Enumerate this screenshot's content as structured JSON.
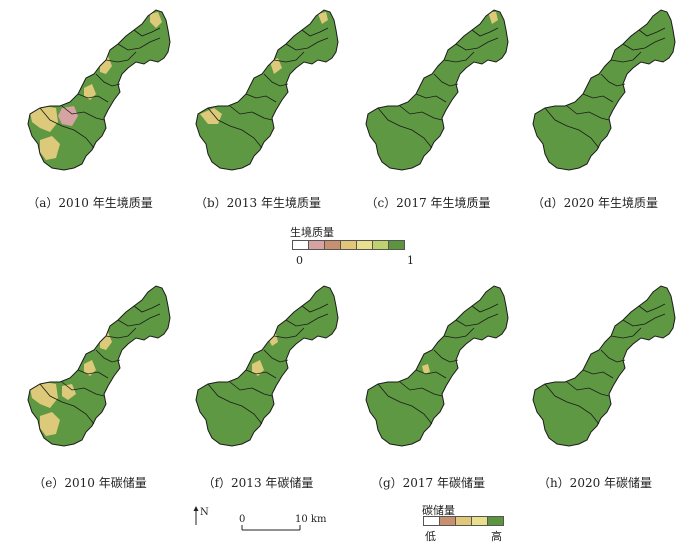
{
  "habitat_panels": [
    {
      "caption": "（a）2010 年生境质量",
      "variant": "h2010"
    },
    {
      "caption": "（b）2013 年生境质量",
      "variant": "h2013"
    },
    {
      "caption": "（c）2017 年生境质量",
      "variant": "h2017"
    },
    {
      "caption": "（d）2020 年生境质量",
      "variant": "h2020"
    }
  ],
  "carbon_panels": [
    {
      "caption": "（e）2010 年碳储量",
      "variant": "c2010"
    },
    {
      "caption": "（f）2013 年碳储量",
      "variant": "c2013"
    },
    {
      "caption": "（g）2017 年碳储量",
      "variant": "c2017"
    },
    {
      "caption": "（h）2020 年碳储量",
      "variant": "c2020"
    }
  ],
  "habitat_legend": {
    "title": "生境质量",
    "min_label": "0",
    "max_label": "1",
    "colors": [
      "#ffffff",
      "#d6a3a3",
      "#c9906f",
      "#e2c67a",
      "#e8e08c",
      "#bfd26e",
      "#5c9440"
    ]
  },
  "carbon_legend": {
    "title": "碳储量",
    "low_label": "低",
    "high_label": "高",
    "colors": [
      "#ffffff",
      "#c9906f",
      "#e2c67a",
      "#e8e08c",
      "#5c9440"
    ]
  },
  "north_arrow": {
    "label": "N"
  },
  "scale_bar": {
    "start": "0",
    "end": "10 km"
  },
  "map_colors": {
    "high": "#5f9842",
    "medium": "#dcca7a",
    "low": "#d6a3a3",
    "white": "#ffffff",
    "boundary": "#1a1a1a"
  }
}
